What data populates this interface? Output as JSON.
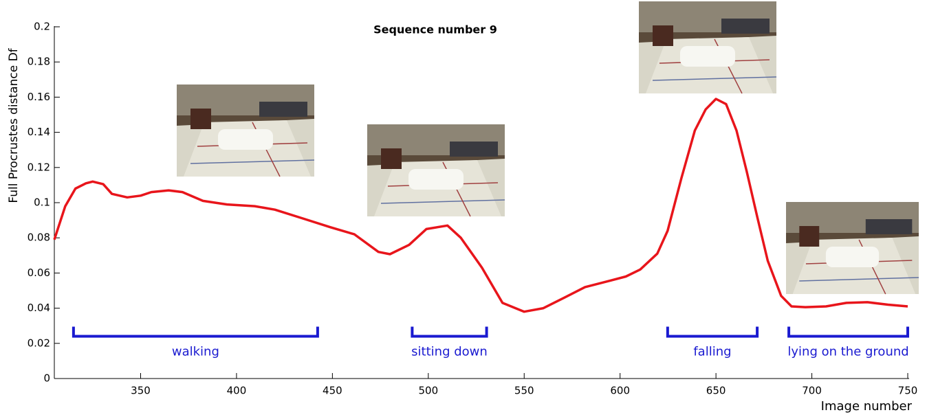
{
  "chart_data": {
    "type": "line",
    "title": "Sequence number 9",
    "x_label": "Image number",
    "y_label": "Full Procrustes distance Df",
    "xlim": [
      305,
      750
    ],
    "ylim": [
      0,
      0.2
    ],
    "xticks": [
      350,
      400,
      450,
      500,
      550,
      600,
      650,
      700,
      750
    ],
    "yticks": [
      0,
      0.02,
      0.04,
      0.06,
      0.08,
      0.1,
      0.12,
      0.14,
      0.16,
      0.18,
      0.2
    ],
    "x": [
      305,
      310.7,
      316,
      321.5,
      325,
      330.5,
      335,
      343,
      350,
      355.6,
      364.6,
      371.8,
      382.5,
      395,
      409.5,
      420,
      434.6,
      449,
      461.5,
      474,
      480,
      490,
      499,
      510,
      517,
      528,
      538.7,
      550,
      560,
      571,
      581.7,
      592.5,
      603,
      610.5,
      619.4,
      624.8,
      632,
      639,
      644.6,
      650,
      655.3,
      660.7,
      666,
      671.5,
      677,
      684,
      689.4,
      696.6,
      707.4,
      718,
      729,
      739.7,
      750
    ],
    "series": [
      {
        "color": "#e8151b",
        "values": [
          0.079,
          0.098,
          0.108,
          0.111,
          0.112,
          0.1105,
          0.105,
          0.103,
          0.104,
          0.106,
          0.107,
          0.106,
          0.101,
          0.099,
          0.098,
          0.096,
          0.091,
          0.086,
          0.082,
          0.072,
          0.0707,
          0.076,
          0.085,
          0.087,
          0.08,
          0.063,
          0.043,
          0.038,
          0.04,
          0.046,
          0.052,
          0.055,
          0.058,
          0.062,
          0.071,
          0.084,
          0.114,
          0.141,
          0.153,
          0.159,
          0.156,
          0.141,
          0.118,
          0.092,
          0.067,
          0.047,
          0.041,
          0.0406,
          0.041,
          0.043,
          0.0434,
          0.042,
          0.041
        ]
      }
    ],
    "annotations": [
      {
        "text": "walking",
        "range": [
          315,
          442.3
        ],
        "y": 0.024
      },
      {
        "text": "sitting down",
        "range": [
          491.6,
          530.4
        ],
        "y": 0.024
      },
      {
        "text": "falling",
        "range": [
          624.8,
          671.5
        ],
        "y": 0.024
      },
      {
        "text": "lying on the ground",
        "range": [
          688,
          750
        ],
        "y": 0.024
      }
    ],
    "annotation_color": "#1a1ad0"
  }
}
